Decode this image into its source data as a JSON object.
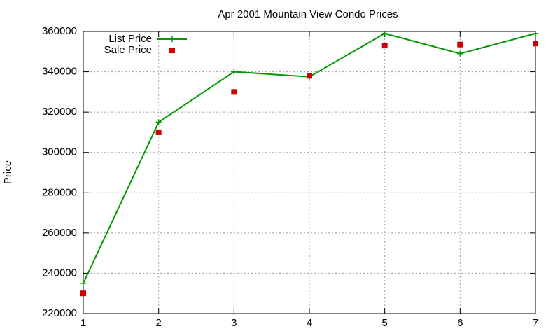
{
  "chart_data": {
    "type": "line",
    "title": "Apr 2001 Mountain View Condo Prices",
    "ylabel": "Price",
    "x": [
      1,
      2,
      3,
      4,
      5,
      6,
      7
    ],
    "series": [
      {
        "name": "List Price",
        "color": "#009900",
        "line": true,
        "marker": "plus",
        "values": [
          235000,
          315000,
          340000,
          337500,
          359000,
          349000,
          359000
        ]
      },
      {
        "name": "Sale Price",
        "color": "#cc0000",
        "line": false,
        "marker": "square",
        "values": [
          230000,
          310000,
          330000,
          338000,
          353000,
          353500,
          354000
        ]
      }
    ],
    "xlim": [
      1,
      7
    ],
    "xticks": [
      1,
      2,
      3,
      4,
      5,
      6,
      7
    ],
    "ylim": [
      220000,
      360000
    ],
    "yticks": [
      220000,
      240000,
      260000,
      280000,
      300000,
      320000,
      340000,
      360000
    ],
    "grid": true,
    "legend": "top-left"
  }
}
